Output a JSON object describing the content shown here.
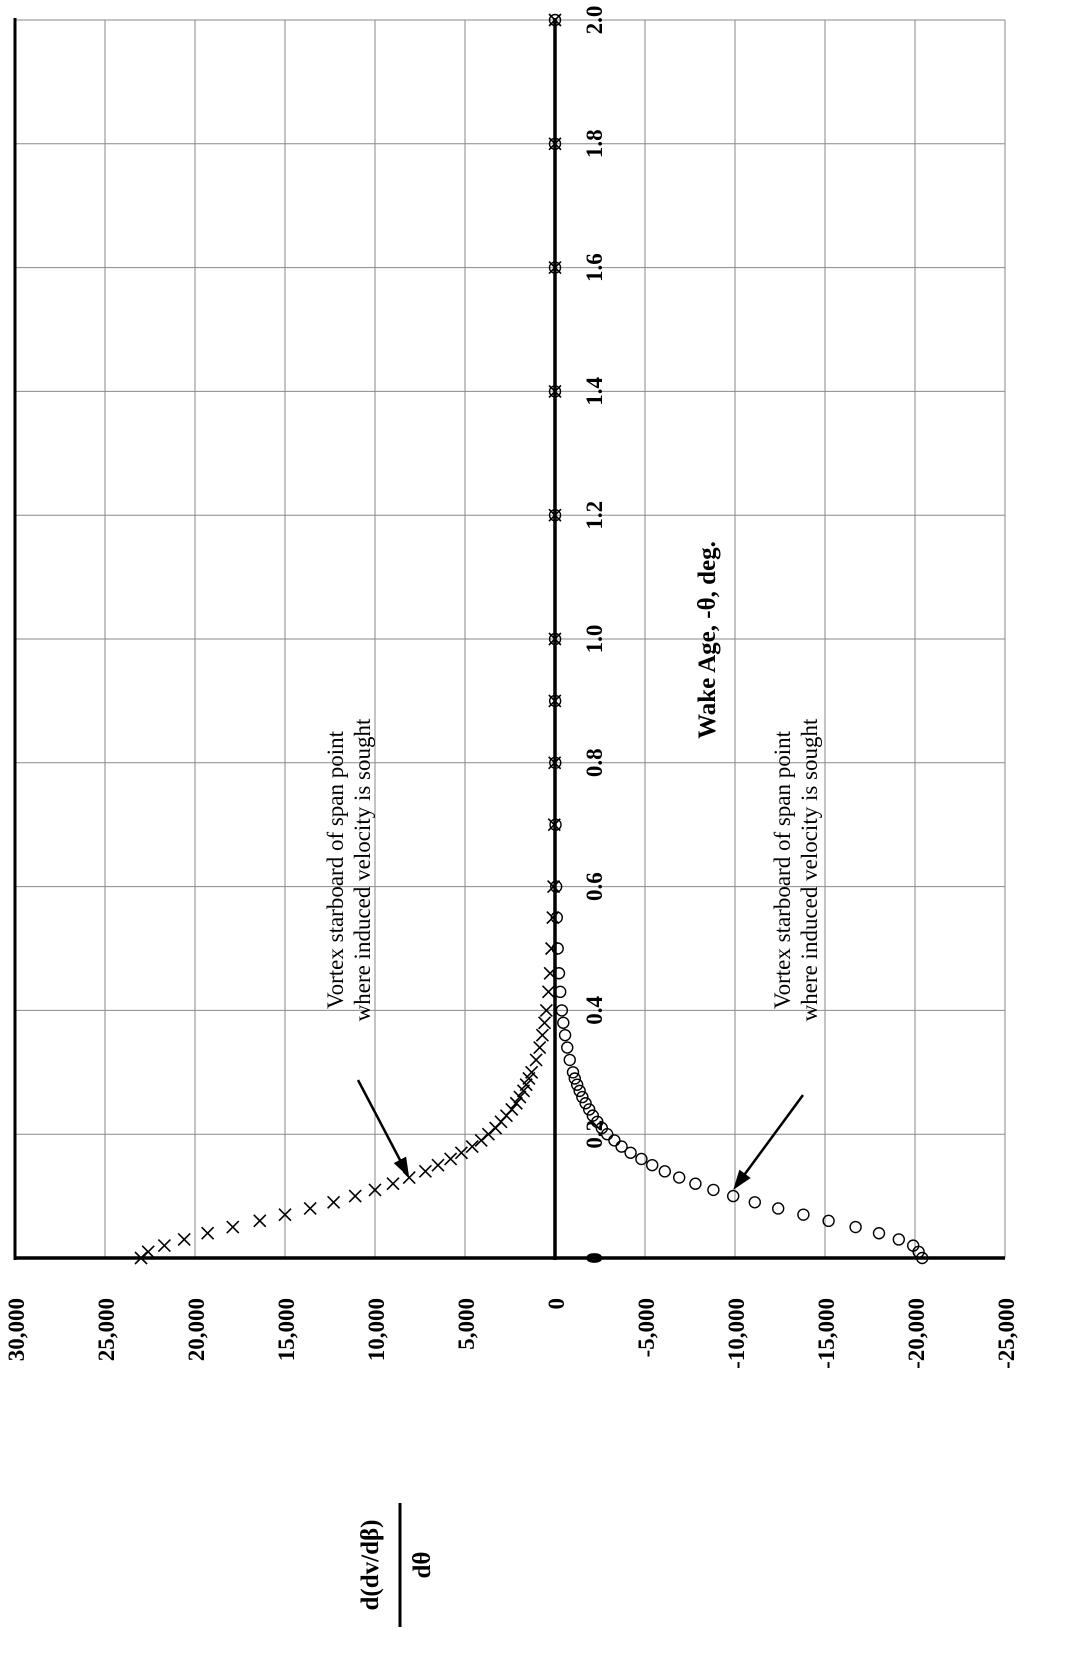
{
  "chart_data": {
    "type": "scatter",
    "orientation": "rotated-90-ccw",
    "title": "",
    "xlabel": "Wake Age, -θ, deg.",
    "ylabel": {
      "numerator": "d(dv/dβ)",
      "denominator": "dθ"
    },
    "xlim": [
      0,
      2.0
    ],
    "ylim": [
      -25000,
      30000
    ],
    "x_ticks": [
      "0",
      "0.2",
      "0.4",
      "0.6",
      "0.8",
      "1.0",
      "1.2",
      "1.4",
      "1.6",
      "1.8",
      "2.0"
    ],
    "y_ticks": [
      "30,000",
      "25,000",
      "20,000",
      "15,000",
      "10,000",
      "5,000",
      "0",
      "-5,000",
      "-10,000",
      "-15,000",
      "-20,000",
      "-25,000"
    ],
    "grid": true,
    "series": [
      {
        "marker": "x",
        "x": [
          0,
          0.01,
          0.02,
          0.03,
          0.04,
          0.05,
          0.06,
          0.07,
          0.08,
          0.09,
          0.1,
          0.11,
          0.12,
          0.13,
          0.14,
          0.15,
          0.16,
          0.17,
          0.18,
          0.19,
          0.2,
          0.21,
          0.22,
          0.23,
          0.24,
          0.25,
          0.26,
          0.27,
          0.28,
          0.29,
          0.3,
          0.32,
          0.34,
          0.36,
          0.38,
          0.4,
          0.43,
          0.46,
          0.5,
          0.55,
          0.6,
          0.7,
          0.8,
          0.9,
          1.0,
          1.2,
          1.4,
          1.6,
          1.8,
          2.0
        ],
        "y": [
          23000,
          22600,
          21700,
          20600,
          19300,
          17900,
          16400,
          15000,
          13600,
          12300,
          11100,
          10000,
          9000,
          8100,
          7200,
          6500,
          5800,
          5200,
          4600,
          4100,
          3700,
          3300,
          3000,
          2700,
          2400,
          2150,
          1950,
          1750,
          1600,
          1450,
          1300,
          1050,
          850,
          700,
          580,
          480,
          360,
          270,
          190,
          120,
          80,
          40,
          20,
          10,
          5,
          2,
          1,
          0,
          0,
          0
        ]
      },
      {
        "marker": "o",
        "x": [
          0,
          0.01,
          0.02,
          0.03,
          0.04,
          0.05,
          0.06,
          0.07,
          0.08,
          0.09,
          0.1,
          0.11,
          0.12,
          0.13,
          0.14,
          0.15,
          0.16,
          0.17,
          0.18,
          0.19,
          0.2,
          0.21,
          0.22,
          0.23,
          0.24,
          0.25,
          0.26,
          0.27,
          0.28,
          0.29,
          0.3,
          0.32,
          0.34,
          0.36,
          0.38,
          0.4,
          0.43,
          0.46,
          0.5,
          0.55,
          0.6,
          0.7,
          0.8,
          0.9,
          1.0,
          1.2,
          1.4,
          1.6,
          1.8,
          2.0
        ],
        "y": [
          -20400,
          -20200,
          -19900,
          -19100,
          -18000,
          -16700,
          -15200,
          -13800,
          -12400,
          -11100,
          -9900,
          -8800,
          -7800,
          -6900,
          -6100,
          -5400,
          -4800,
          -4200,
          -3700,
          -3300,
          -2900,
          -2600,
          -2350,
          -2100,
          -1900,
          -1700,
          -1520,
          -1370,
          -1230,
          -1100,
          -1000,
          -820,
          -680,
          -560,
          -460,
          -380,
          -290,
          -220,
          -150,
          -100,
          -65,
          -30,
          -15,
          -8,
          -4,
          -2,
          -1,
          0,
          0,
          0
        ]
      }
    ],
    "annotations": [
      {
        "lines": [
          "Vortex starboard of span point",
          "where induced velocity is sought"
        ],
        "points_to": {
          "x": 0.13,
          "y": 8100
        }
      },
      {
        "lines": [
          "Vortex starboard of span point",
          "where induced velocity is sought"
        ],
        "points_to": {
          "x": 0.11,
          "y": -9900
        }
      }
    ]
  }
}
